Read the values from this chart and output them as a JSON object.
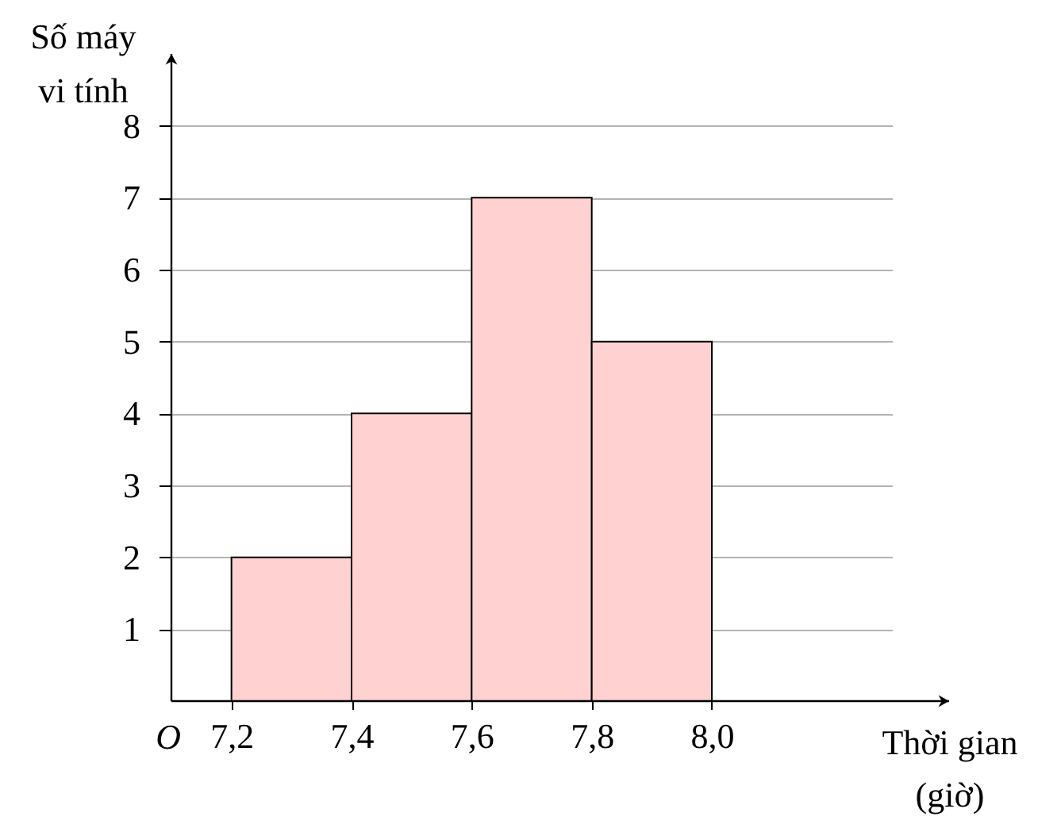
{
  "chart_data": {
    "type": "histogram",
    "xlabel": "Thời gian\n(giờ)",
    "ylabel": "Số máy\nvi tính",
    "bins": [
      7.2,
      7.4,
      7.6,
      7.8,
      8.0
    ],
    "values": [
      2,
      4,
      7,
      5
    ],
    "color": "#ffd1d1",
    "xlim": [
      7.1,
      8.3
    ],
    "ylim": [
      0,
      9
    ],
    "xticks": [
      {
        "value": 7.2,
        "label": "7,2"
      },
      {
        "value": 7.4,
        "label": "7,4"
      },
      {
        "value": 7.6,
        "label": "7,6"
      },
      {
        "value": 7.8,
        "label": "7,8"
      },
      {
        "value": 8.0,
        "label": "8,0"
      }
    ],
    "yticks": [
      1,
      2,
      3,
      4,
      5,
      6,
      7,
      8
    ],
    "grid": "y",
    "annotations": [
      "O"
    ]
  }
}
